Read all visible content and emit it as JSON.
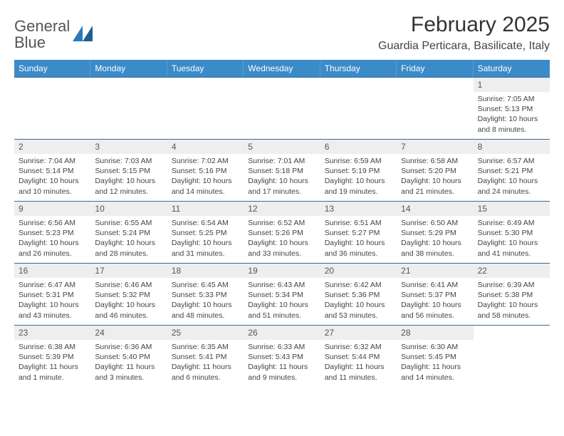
{
  "brand": {
    "name_part1": "General",
    "name_part2": "Blue"
  },
  "title": "February 2025",
  "location": "Guardia Perticara, Basilicate, Italy",
  "colors": {
    "header_bg": "#3b8bc9",
    "header_text": "#ffffff",
    "week_divider": "#3b6a94",
    "daynum_bg": "#eeeeee",
    "body_text": "#444444",
    "brand_gray": "#555555",
    "brand_blue": "#2a7ac0",
    "page_bg": "#ffffff"
  },
  "typography": {
    "title_fontsize": 30,
    "location_fontsize": 16,
    "weekday_fontsize": 12,
    "daynum_fontsize": 12,
    "body_fontsize": 10.5,
    "font_family": "Arial"
  },
  "layout": {
    "columns": 7,
    "rows": 5,
    "cell_min_height": 86
  },
  "weekdays": [
    "Sunday",
    "Monday",
    "Tuesday",
    "Wednesday",
    "Thursday",
    "Friday",
    "Saturday"
  ],
  "weeks": [
    [
      {
        "empty": true
      },
      {
        "empty": true
      },
      {
        "empty": true
      },
      {
        "empty": true
      },
      {
        "empty": true
      },
      {
        "empty": true
      },
      {
        "num": "1",
        "sunrise": "Sunrise: 7:05 AM",
        "sunset": "Sunset: 5:13 PM",
        "daylight": "Daylight: 10 hours and 8 minutes."
      }
    ],
    [
      {
        "num": "2",
        "sunrise": "Sunrise: 7:04 AM",
        "sunset": "Sunset: 5:14 PM",
        "daylight": "Daylight: 10 hours and 10 minutes."
      },
      {
        "num": "3",
        "sunrise": "Sunrise: 7:03 AM",
        "sunset": "Sunset: 5:15 PM",
        "daylight": "Daylight: 10 hours and 12 minutes."
      },
      {
        "num": "4",
        "sunrise": "Sunrise: 7:02 AM",
        "sunset": "Sunset: 5:16 PM",
        "daylight": "Daylight: 10 hours and 14 minutes."
      },
      {
        "num": "5",
        "sunrise": "Sunrise: 7:01 AM",
        "sunset": "Sunset: 5:18 PM",
        "daylight": "Daylight: 10 hours and 17 minutes."
      },
      {
        "num": "6",
        "sunrise": "Sunrise: 6:59 AM",
        "sunset": "Sunset: 5:19 PM",
        "daylight": "Daylight: 10 hours and 19 minutes."
      },
      {
        "num": "7",
        "sunrise": "Sunrise: 6:58 AM",
        "sunset": "Sunset: 5:20 PM",
        "daylight": "Daylight: 10 hours and 21 minutes."
      },
      {
        "num": "8",
        "sunrise": "Sunrise: 6:57 AM",
        "sunset": "Sunset: 5:21 PM",
        "daylight": "Daylight: 10 hours and 24 minutes."
      }
    ],
    [
      {
        "num": "9",
        "sunrise": "Sunrise: 6:56 AM",
        "sunset": "Sunset: 5:23 PM",
        "daylight": "Daylight: 10 hours and 26 minutes."
      },
      {
        "num": "10",
        "sunrise": "Sunrise: 6:55 AM",
        "sunset": "Sunset: 5:24 PM",
        "daylight": "Daylight: 10 hours and 28 minutes."
      },
      {
        "num": "11",
        "sunrise": "Sunrise: 6:54 AM",
        "sunset": "Sunset: 5:25 PM",
        "daylight": "Daylight: 10 hours and 31 minutes."
      },
      {
        "num": "12",
        "sunrise": "Sunrise: 6:52 AM",
        "sunset": "Sunset: 5:26 PM",
        "daylight": "Daylight: 10 hours and 33 minutes."
      },
      {
        "num": "13",
        "sunrise": "Sunrise: 6:51 AM",
        "sunset": "Sunset: 5:27 PM",
        "daylight": "Daylight: 10 hours and 36 minutes."
      },
      {
        "num": "14",
        "sunrise": "Sunrise: 6:50 AM",
        "sunset": "Sunset: 5:29 PM",
        "daylight": "Daylight: 10 hours and 38 minutes."
      },
      {
        "num": "15",
        "sunrise": "Sunrise: 6:49 AM",
        "sunset": "Sunset: 5:30 PM",
        "daylight": "Daylight: 10 hours and 41 minutes."
      }
    ],
    [
      {
        "num": "16",
        "sunrise": "Sunrise: 6:47 AM",
        "sunset": "Sunset: 5:31 PM",
        "daylight": "Daylight: 10 hours and 43 minutes."
      },
      {
        "num": "17",
        "sunrise": "Sunrise: 6:46 AM",
        "sunset": "Sunset: 5:32 PM",
        "daylight": "Daylight: 10 hours and 46 minutes."
      },
      {
        "num": "18",
        "sunrise": "Sunrise: 6:45 AM",
        "sunset": "Sunset: 5:33 PM",
        "daylight": "Daylight: 10 hours and 48 minutes."
      },
      {
        "num": "19",
        "sunrise": "Sunrise: 6:43 AM",
        "sunset": "Sunset: 5:34 PM",
        "daylight": "Daylight: 10 hours and 51 minutes."
      },
      {
        "num": "20",
        "sunrise": "Sunrise: 6:42 AM",
        "sunset": "Sunset: 5:36 PM",
        "daylight": "Daylight: 10 hours and 53 minutes."
      },
      {
        "num": "21",
        "sunrise": "Sunrise: 6:41 AM",
        "sunset": "Sunset: 5:37 PM",
        "daylight": "Daylight: 10 hours and 56 minutes."
      },
      {
        "num": "22",
        "sunrise": "Sunrise: 6:39 AM",
        "sunset": "Sunset: 5:38 PM",
        "daylight": "Daylight: 10 hours and 58 minutes."
      }
    ],
    [
      {
        "num": "23",
        "sunrise": "Sunrise: 6:38 AM",
        "sunset": "Sunset: 5:39 PM",
        "daylight": "Daylight: 11 hours and 1 minute."
      },
      {
        "num": "24",
        "sunrise": "Sunrise: 6:36 AM",
        "sunset": "Sunset: 5:40 PM",
        "daylight": "Daylight: 11 hours and 3 minutes."
      },
      {
        "num": "25",
        "sunrise": "Sunrise: 6:35 AM",
        "sunset": "Sunset: 5:41 PM",
        "daylight": "Daylight: 11 hours and 6 minutes."
      },
      {
        "num": "26",
        "sunrise": "Sunrise: 6:33 AM",
        "sunset": "Sunset: 5:43 PM",
        "daylight": "Daylight: 11 hours and 9 minutes."
      },
      {
        "num": "27",
        "sunrise": "Sunrise: 6:32 AM",
        "sunset": "Sunset: 5:44 PM",
        "daylight": "Daylight: 11 hours and 11 minutes."
      },
      {
        "num": "28",
        "sunrise": "Sunrise: 6:30 AM",
        "sunset": "Sunset: 5:45 PM",
        "daylight": "Daylight: 11 hours and 14 minutes."
      },
      {
        "empty": true
      }
    ]
  ]
}
